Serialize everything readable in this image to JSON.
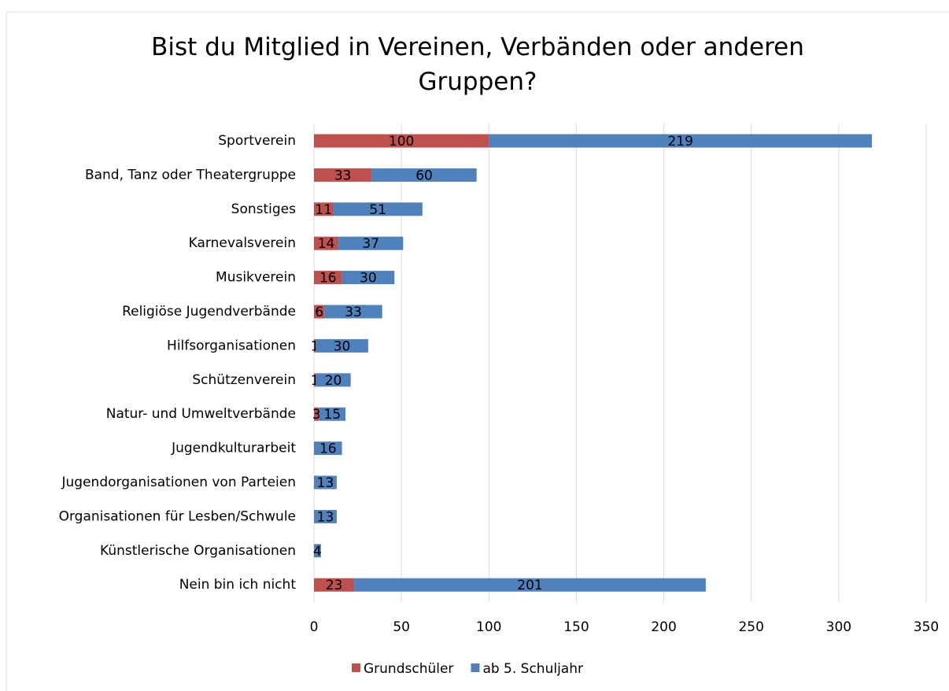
{
  "chart_data": {
    "type": "stacked_barh",
    "title": "Bist du Mitglied in Vereinen, Verbänden oder anderen Gruppen?",
    "categories": [
      "Sportverein",
      "Band, Tanz oder Theatergruppe",
      "Sonstiges",
      "Karnevalsverein",
      "Musikverein",
      "Religiöse Jugendverbände",
      "Hilfsorganisationen",
      "Schützenverein",
      "Natur- und Umweltverbände",
      "Jugendkulturarbeit",
      "Jugendorganisationen von Parteien",
      "Organisationen für Lesben/Schwule",
      "Künstlerische Organisationen",
      "Nein bin ich nicht"
    ],
    "series": [
      {
        "name": "Grundschüler",
        "color": "#c0504d",
        "values": [
          100,
          33,
          11,
          14,
          16,
          6,
          1,
          1,
          3,
          null,
          null,
          null,
          null,
          23
        ]
      },
      {
        "name": "ab 5. Schuljahr",
        "color": "#4f81bd",
        "values": [
          219,
          60,
          51,
          37,
          30,
          33,
          30,
          20,
          15,
          16,
          13,
          13,
          4,
          201
        ]
      }
    ],
    "xlim": [
      0,
      350
    ],
    "xticks": [
      0,
      50,
      100,
      150,
      200,
      250,
      300,
      350
    ],
    "grid": true,
    "legend": "bottom"
  }
}
